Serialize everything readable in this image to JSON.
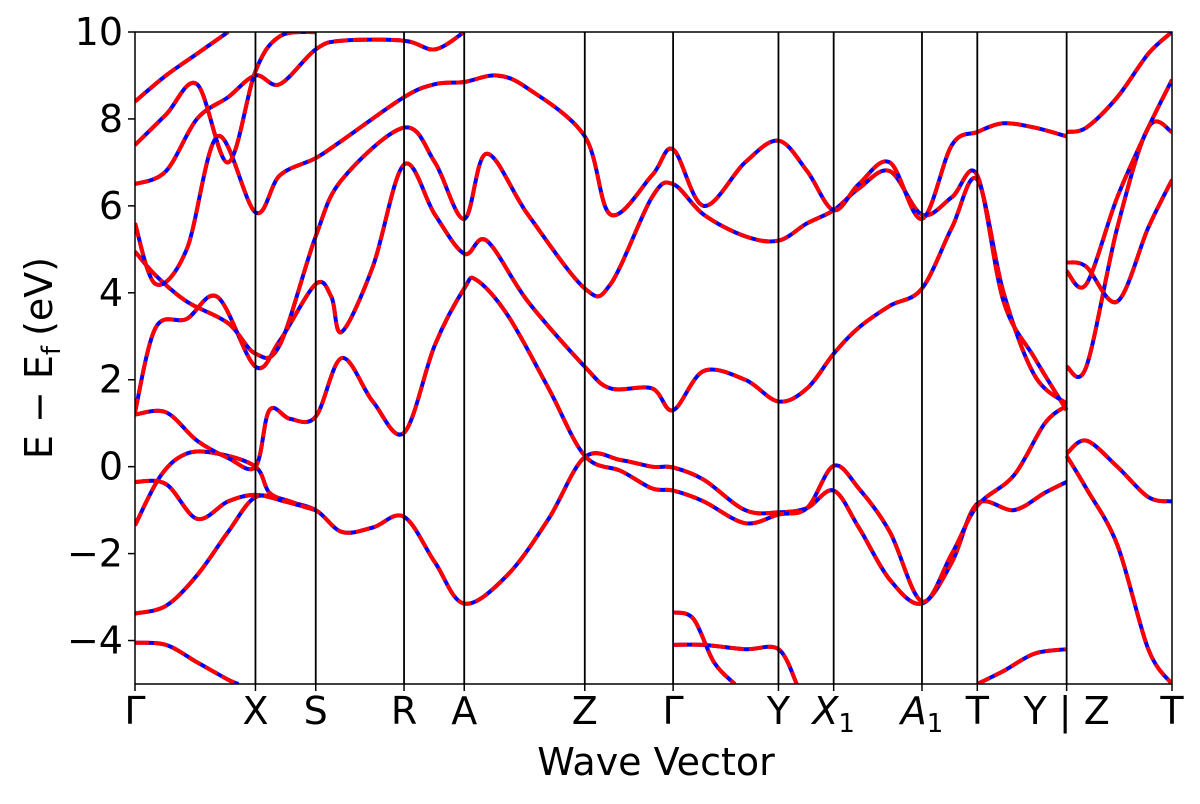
{
  "chart_data": {
    "type": "line",
    "title": "",
    "xlabel": "Wave Vector",
    "ylabel": {
      "main": "E − E",
      "sub": "f",
      "unit": "(eV)"
    },
    "ylim": [
      -5,
      10
    ],
    "grid": false,
    "legend": "none",
    "yticks": [
      {
        "value": -4,
        "label": "−4"
      },
      {
        "value": -2,
        "label": "−2"
      },
      {
        "value": 0,
        "label": "0"
      },
      {
        "value": 2,
        "label": "2"
      },
      {
        "value": 4,
        "label": "4"
      },
      {
        "value": 6,
        "label": "6"
      },
      {
        "value": 8,
        "label": "8"
      },
      {
        "value": 10,
        "label": "10"
      }
    ],
    "kpoints": [
      {
        "name": "Γ",
        "label": "Γ",
        "italic": false,
        "sub": "",
        "pos": 0.0
      },
      {
        "name": "X",
        "label": "X",
        "italic": false,
        "sub": "",
        "pos": 1.165
      },
      {
        "name": "S",
        "label": "S",
        "italic": false,
        "sub": "",
        "pos": 1.748
      },
      {
        "name": "R",
        "label": "R",
        "italic": false,
        "sub": "",
        "pos": 2.602
      },
      {
        "name": "A",
        "label": "A",
        "italic": false,
        "sub": "",
        "pos": 3.184
      },
      {
        "name": "Z",
        "label": "Z",
        "italic": false,
        "sub": "",
        "pos": 4.35
      },
      {
        "name": "Gamma-2",
        "label": "Γ",
        "italic": false,
        "sub": "",
        "pos": 5.204
      },
      {
        "name": "Y",
        "label": "Y",
        "italic": false,
        "sub": "",
        "pos": 6.223
      },
      {
        "name": "X1",
        "label": "X",
        "italic": true,
        "sub": "1",
        "pos": 6.757
      },
      {
        "name": "A1",
        "label": "A",
        "italic": true,
        "sub": "1",
        "pos": 7.611
      },
      {
        "name": "T",
        "label": "T",
        "italic": false,
        "sub": "",
        "pos": 8.146
      },
      {
        "name": "Y-Z",
        "label": "Y | Z",
        "italic": false,
        "sub": "",
        "pos": 9.01
      },
      {
        "name": "T-end",
        "label": "T",
        "italic": false,
        "sub": "",
        "pos": 10.029
      }
    ],
    "xlim": [
      0,
      10.029
    ],
    "band_colors": {
      "reference": "#0000ff",
      "overlay": "#ff0000"
    },
    "bands": [
      [
        [
          0.0,
          -4.05
        ],
        [
          0.3,
          -4.1
        ],
        [
          0.6,
          -4.5
        ],
        [
          0.9,
          -4.9
        ],
        [
          1.0,
          -5.0
        ]
      ],
      [
        [
          0.0,
          -3.38
        ],
        [
          0.3,
          -3.2
        ],
        [
          0.6,
          -2.5
        ],
        [
          0.9,
          -1.5
        ],
        [
          1.165,
          -0.7
        ],
        [
          1.45,
          -0.8
        ],
        [
          1.748,
          -1.0
        ],
        [
          2.0,
          -1.5
        ],
        [
          2.3,
          -1.4
        ],
        [
          2.602,
          -1.15
        ],
        [
          2.9,
          -2.2
        ],
        [
          3.184,
          -3.15
        ],
        [
          3.6,
          -2.5
        ],
        [
          4.0,
          -1.2
        ],
        [
          4.35,
          0.22
        ],
        [
          4.7,
          0.15
        ],
        [
          5.0,
          0.0
        ],
        [
          5.204,
          -0.02
        ],
        [
          5.5,
          -0.3
        ],
        [
          5.9,
          -1.0
        ],
        [
          6.223,
          -1.05
        ],
        [
          6.5,
          -0.95
        ],
        [
          6.757,
          -0.55
        ],
        [
          7.0,
          -1.4
        ],
        [
          7.3,
          -2.6
        ],
        [
          7.611,
          -3.15
        ],
        [
          7.9,
          -2.2
        ],
        [
          8.146,
          -0.85
        ],
        [
          8.5,
          -1.0
        ],
        [
          8.8,
          -0.6
        ],
        [
          9.01,
          -0.35
        ]
      ],
      [
        [
          0.0,
          -1.35
        ],
        [
          0.25,
          -0.2
        ],
        [
          0.5,
          0.3
        ],
        [
          0.8,
          0.3
        ],
        [
          1.165,
          0.0
        ],
        [
          1.3,
          -0.6
        ],
        [
          1.5,
          -0.8
        ],
        [
          1.748,
          -1.0
        ]
      ],
      [
        [
          0.0,
          -0.35
        ],
        [
          0.3,
          -0.4
        ],
        [
          0.6,
          -1.2
        ],
        [
          0.9,
          -0.8
        ],
        [
          1.165,
          -0.65
        ],
        [
          1.45,
          -0.8
        ],
        [
          1.748,
          -1.0
        ]
      ],
      [
        [
          0.0,
          1.2
        ],
        [
          0.3,
          1.25
        ],
        [
          0.6,
          0.6
        ],
        [
          0.9,
          0.2
        ],
        [
          1.165,
          0.0
        ],
        [
          1.3,
          1.3
        ],
        [
          1.5,
          1.1
        ],
        [
          1.748,
          1.15
        ],
        [
          2.0,
          2.5
        ],
        [
          2.3,
          1.5
        ],
        [
          2.602,
          0.78
        ],
        [
          2.9,
          2.8
        ],
        [
          3.184,
          4.1
        ],
        [
          3.3,
          4.3
        ],
        [
          3.6,
          3.5
        ],
        [
          4.0,
          1.8
        ],
        [
          4.35,
          0.25
        ],
        [
          4.7,
          -0.1
        ],
        [
          5.0,
          -0.5
        ],
        [
          5.204,
          -0.55
        ],
        [
          5.5,
          -0.8
        ],
        [
          5.9,
          -1.3
        ],
        [
          6.223,
          -1.1
        ],
        [
          6.5,
          -0.95
        ],
        [
          6.757,
          0.02
        ],
        [
          7.0,
          -0.5
        ],
        [
          7.3,
          -1.5
        ],
        [
          7.611,
          -3.1
        ],
        [
          7.9,
          -2.0
        ],
        [
          8.146,
          -0.9
        ],
        [
          8.5,
          -0.2
        ],
        [
          8.8,
          1.0
        ],
        [
          9.01,
          1.4
        ]
      ],
      [
        [
          0.0,
          1.25
        ],
        [
          0.2,
          3.2
        ],
        [
          0.5,
          3.4
        ],
        [
          0.8,
          3.9
        ],
        [
          1.165,
          2.3
        ],
        [
          1.4,
          2.9
        ],
        [
          1.748,
          4.2
        ],
        [
          1.9,
          3.9
        ],
        [
          2.0,
          3.1
        ],
        [
          2.3,
          4.6
        ],
        [
          2.602,
          6.95
        ],
        [
          2.9,
          5.8
        ],
        [
          3.184,
          4.9
        ],
        [
          3.4,
          5.2
        ],
        [
          3.8,
          3.8
        ],
        [
          4.35,
          2.3
        ],
        [
          4.6,
          1.8
        ],
        [
          5.0,
          1.8
        ],
        [
          5.204,
          1.3
        ],
        [
          5.5,
          2.2
        ],
        [
          5.9,
          2.0
        ],
        [
          6.223,
          1.5
        ],
        [
          6.5,
          1.8
        ],
        [
          6.757,
          2.6
        ],
        [
          7.0,
          3.2
        ],
        [
          7.3,
          3.7
        ],
        [
          7.611,
          4.1
        ],
        [
          7.9,
          5.5
        ],
        [
          8.146,
          6.6
        ],
        [
          8.4,
          4.0
        ],
        [
          8.7,
          2.1
        ],
        [
          9.01,
          1.45
        ]
      ],
      [
        [
          0.0,
          4.95
        ],
        [
          0.2,
          4.4
        ],
        [
          0.5,
          3.8
        ],
        [
          0.9,
          3.3
        ],
        [
          1.165,
          2.6
        ],
        [
          1.4,
          2.8
        ],
        [
          1.748,
          5.3
        ],
        [
          2.0,
          6.6
        ],
        [
          2.602,
          7.8
        ],
        [
          2.9,
          7.0
        ],
        [
          3.184,
          5.7
        ],
        [
          3.4,
          7.2
        ],
        [
          3.8,
          5.8
        ],
        [
          4.35,
          4.1
        ],
        [
          4.6,
          4.2
        ],
        [
          5.0,
          6.2
        ],
        [
          5.204,
          6.5
        ],
        [
          5.5,
          5.8
        ],
        [
          5.9,
          5.3
        ],
        [
          6.223,
          5.2
        ],
        [
          6.5,
          5.6
        ],
        [
          6.757,
          5.9
        ],
        [
          7.0,
          6.4
        ],
        [
          7.3,
          6.8
        ],
        [
          7.611,
          5.8
        ],
        [
          7.9,
          6.2
        ],
        [
          8.146,
          6.7
        ],
        [
          8.4,
          3.8
        ],
        [
          8.7,
          2.5
        ],
        [
          9.01,
          1.3
        ]
      ],
      [
        [
          0.0,
          5.6
        ],
        [
          0.2,
          4.2
        ],
        [
          0.5,
          5.0
        ],
        [
          0.8,
          7.6
        ],
        [
          1.165,
          5.85
        ],
        [
          1.4,
          6.7
        ],
        [
          1.748,
          7.1
        ],
        [
          2.0,
          7.5
        ],
        [
          2.602,
          8.5
        ],
        [
          2.9,
          8.8
        ],
        [
          3.184,
          8.85
        ],
        [
          3.5,
          9.0
        ],
        [
          3.8,
          8.7
        ],
        [
          4.35,
          7.6
        ],
        [
          4.6,
          5.8
        ],
        [
          5.0,
          6.7
        ],
        [
          5.204,
          7.3
        ],
        [
          5.5,
          6.0
        ],
        [
          5.9,
          7.0
        ],
        [
          6.223,
          7.5
        ],
        [
          6.5,
          6.8
        ],
        [
          6.757,
          5.9
        ],
        [
          7.0,
          6.5
        ],
        [
          7.3,
          7.0
        ],
        [
          7.611,
          5.7
        ],
        [
          7.9,
          7.4
        ],
        [
          8.146,
          7.7
        ],
        [
          8.4,
          7.9
        ],
        [
          8.7,
          7.8
        ],
        [
          9.01,
          7.6
        ]
      ],
      [
        [
          0.0,
          6.5
        ],
        [
          0.3,
          6.8
        ],
        [
          0.6,
          8.0
        ],
        [
          0.9,
          8.5
        ],
        [
          1.165,
          9.0
        ],
        [
          1.4,
          8.8
        ],
        [
          1.748,
          9.6
        ],
        [
          2.0,
          9.8
        ],
        [
          2.602,
          9.8
        ],
        [
          2.9,
          9.6
        ],
        [
          3.184,
          10.0
        ]
      ],
      [
        [
          0.0,
          7.4
        ],
        [
          0.3,
          8.1
        ],
        [
          0.6,
          8.8
        ],
        [
          0.9,
          7.0
        ],
        [
          1.165,
          9.1
        ],
        [
          1.4,
          9.9
        ],
        [
          1.748,
          10.0
        ]
      ],
      [
        [
          0.0,
          8.4
        ],
        [
          0.3,
          9.0
        ],
        [
          0.6,
          9.5
        ],
        [
          0.9,
          10.0
        ]
      ],
      [
        [
          9.01,
          0.3
        ],
        [
          9.2,
          0.6
        ],
        [
          9.5,
          0.0
        ],
        [
          9.8,
          -0.7
        ],
        [
          10.029,
          -0.8
        ]
      ],
      [
        [
          9.01,
          0.25
        ],
        [
          9.2,
          -0.5
        ],
        [
          9.5,
          -1.8
        ],
        [
          9.8,
          -4.2
        ],
        [
          10.029,
          -5.0
        ]
      ],
      [
        [
          9.01,
          2.3
        ],
        [
          9.2,
          2.3
        ],
        [
          9.5,
          5.5
        ],
        [
          9.8,
          7.8
        ],
        [
          10.029,
          7.7
        ]
      ],
      [
        [
          9.01,
          4.5
        ],
        [
          9.2,
          4.2
        ],
        [
          9.5,
          6.2
        ],
        [
          9.8,
          7.8
        ],
        [
          10.029,
          8.9
        ]
      ],
      [
        [
          9.01,
          4.7
        ],
        [
          9.2,
          4.6
        ],
        [
          9.5,
          3.8
        ],
        [
          9.8,
          5.5
        ],
        [
          10.029,
          6.6
        ]
      ],
      [
        [
          9.01,
          7.7
        ],
        [
          9.2,
          7.8
        ],
        [
          9.5,
          8.5
        ],
        [
          9.8,
          9.5
        ],
        [
          10.029,
          10.0
        ]
      ],
      [
        [
          5.204,
          -4.1
        ],
        [
          5.5,
          -4.1
        ],
        [
          5.9,
          -4.2
        ],
        [
          6.223,
          -4.2
        ],
        [
          6.4,
          -5.0
        ]
      ],
      [
        [
          5.204,
          -3.35
        ],
        [
          5.4,
          -3.5
        ],
        [
          5.6,
          -4.5
        ],
        [
          5.8,
          -5.0
        ]
      ],
      [
        [
          8.146,
          -5.0
        ],
        [
          8.4,
          -4.7
        ],
        [
          8.7,
          -4.3
        ],
        [
          9.01,
          -4.2
        ]
      ]
    ]
  }
}
